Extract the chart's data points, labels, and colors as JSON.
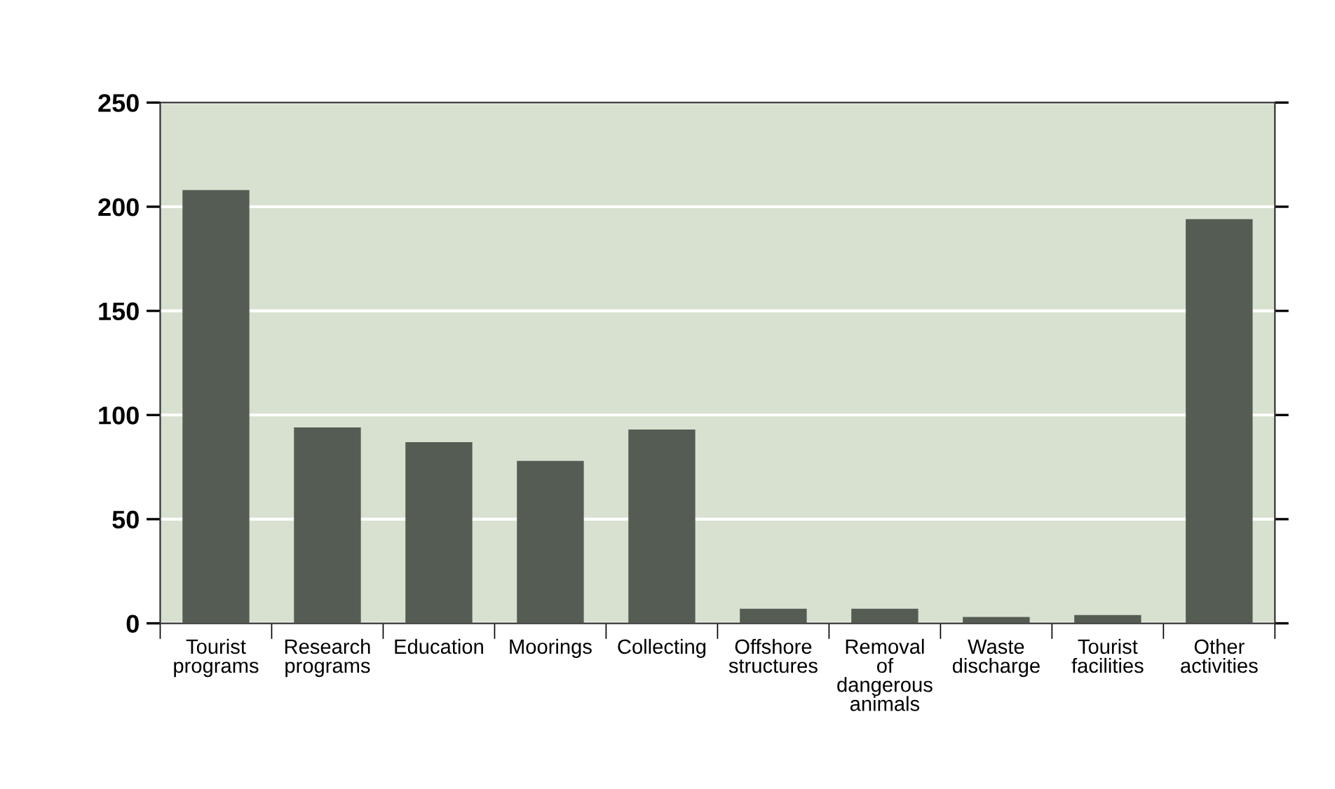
{
  "chart_data": {
    "type": "bar",
    "categories": [
      "Tourist\nprograms",
      "Research\nprograms",
      "Education",
      "Moorings",
      "Collecting",
      "Offshore\nstructures",
      "Removal\nof\ndangerous\nanimals",
      "Waste\ndischarge",
      "Tourist\nfacilities",
      "Other\nactivities"
    ],
    "values": [
      208,
      94,
      87,
      78,
      93,
      7,
      7,
      3,
      4,
      194
    ],
    "color": "#545c54",
    "ylim": [
      0,
      250
    ],
    "yticks": [
      0,
      50,
      100,
      150,
      200,
      250
    ],
    "grid": "y"
  }
}
